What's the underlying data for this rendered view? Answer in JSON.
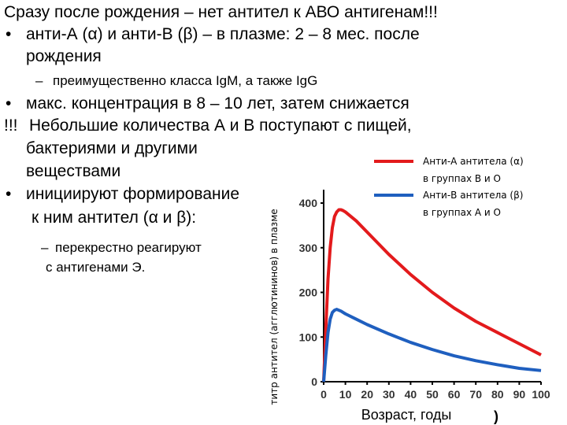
{
  "slide": {
    "title": "Сразу после рождения – нет антител к АВО антигенам!!!",
    "items": [
      {
        "marker": "•",
        "lines": [
          "анти-А (α) и анти-В (β) – в плазме: 2 – 8 мес. после",
          "рождения"
        ]
      },
      {
        "marker": "–",
        "lines": [
          "преимущественно класса IgM, а также IgG"
        ]
      },
      {
        "marker": "•",
        "lines": [
          "макс.  концентрация в 8 – 10 лет, затем снижается"
        ]
      },
      {
        "marker": "!!!",
        "lines": [
          "Небольшие количества  А и В  поступают с пищей,",
          "бактериями и другими",
          "веществами"
        ]
      },
      {
        "marker": "•",
        "lines": [
          "инициируют формирование",
          "к ним антител (α и β):"
        ]
      },
      {
        "marker": "–",
        "lines": [
          "перекрестно реагируют",
          "с антигенами Э."
        ]
      }
    ]
  },
  "chart_data": {
    "type": "line",
    "y_label": "титр антител (агглютининов) в плазме",
    "x_label": "Возраст, годы",
    "x_label_tail": ")",
    "x": [
      0,
      1,
      2,
      3,
      4,
      5,
      6,
      7,
      8,
      9,
      10,
      15,
      20,
      30,
      40,
      50,
      60,
      70,
      80,
      90,
      100
    ],
    "series": [
      {
        "name": "Анти-А антитела (α)",
        "note": "в группах В и О",
        "color": "#e31a1c",
        "values": [
          0,
          120,
          230,
          300,
          345,
          370,
          380,
          385,
          385,
          383,
          380,
          360,
          335,
          285,
          240,
          200,
          165,
          135,
          110,
          85,
          60
        ]
      },
      {
        "name": "Анти-В антитела (β)",
        "note": "в группах А и О",
        "color": "#1f5fbf",
        "values": [
          0,
          60,
          110,
          140,
          155,
          160,
          162,
          160,
          158,
          155,
          152,
          140,
          128,
          107,
          88,
          72,
          58,
          47,
          38,
          30,
          25
        ]
      }
    ],
    "xlim": [
      0,
      100
    ],
    "xticks": [
      0,
      10,
      20,
      30,
      40,
      50,
      60,
      70,
      80,
      90,
      100
    ],
    "ylim": [
      0,
      430
    ],
    "yticks": [
      0,
      100,
      200,
      300,
      400
    ]
  }
}
